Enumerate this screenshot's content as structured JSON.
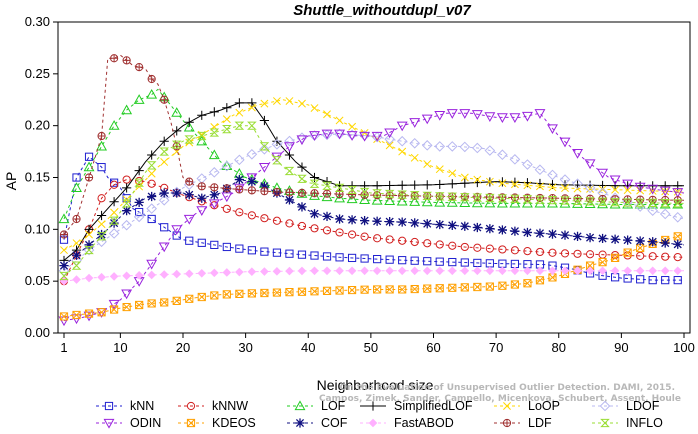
{
  "chart_data": {
    "type": "line",
    "title": "Shuttle_withoutdupl_v07",
    "xlabel": "Neighborhood size",
    "ylabel": "AP",
    "xlim": [
      1,
      100
    ],
    "ylim": [
      0.0,
      0.3
    ],
    "x_ticks": [
      1,
      10,
      20,
      30,
      40,
      50,
      60,
      70,
      80,
      90,
      100
    ],
    "y_ticks": [
      0.0,
      0.05,
      0.1,
      0.15,
      0.2,
      0.25,
      0.3
    ],
    "y_tick_labels": [
      "0.00",
      "0.05",
      "0.10",
      "0.15",
      "0.20",
      "0.25",
      "0.30"
    ],
    "grid": false,
    "legend_position": "bottom",
    "watermark_lines": [
      "Campos, Zimek, Sander, Campello, Micenkova, Schubert, Assent, Houle",
      "On the Evaluation of Unsupervised Outlier Detection. DAMI, 2015."
    ],
    "series": [
      {
        "name": "kNN",
        "color": "#1f1fd0",
        "marker": "square",
        "dash": "3,3",
        "points": [
          [
            1,
            0.09
          ],
          [
            3,
            0.15
          ],
          [
            5,
            0.17
          ],
          [
            7,
            0.16
          ],
          [
            8,
            0.15
          ],
          [
            10,
            0.14
          ],
          [
            12,
            0.12
          ],
          [
            15,
            0.11
          ],
          [
            18,
            0.098
          ],
          [
            20,
            0.09
          ],
          [
            23,
            0.087
          ],
          [
            27,
            0.083
          ],
          [
            32,
            0.079
          ],
          [
            38,
            0.076
          ],
          [
            45,
            0.073
          ],
          [
            52,
            0.071
          ],
          [
            60,
            0.069
          ],
          [
            70,
            0.067
          ],
          [
            78,
            0.066
          ],
          [
            82,
            0.062
          ],
          [
            86,
            0.056
          ],
          [
            90,
            0.053
          ],
          [
            95,
            0.051
          ],
          [
            100,
            0.051
          ]
        ]
      },
      {
        "name": "kNNW",
        "color": "#d22020",
        "marker": "circle",
        "dash": "3,3",
        "points": [
          [
            1,
            0.05
          ],
          [
            3,
            0.075
          ],
          [
            5,
            0.1
          ],
          [
            7,
            0.13
          ],
          [
            9,
            0.143
          ],
          [
            11,
            0.148
          ],
          [
            14,
            0.146
          ],
          [
            17,
            0.14
          ],
          [
            20,
            0.133
          ],
          [
            24,
            0.125
          ],
          [
            28,
            0.118
          ],
          [
            32,
            0.112
          ],
          [
            36,
            0.107
          ],
          [
            40,
            0.102
          ],
          [
            45,
            0.097
          ],
          [
            50,
            0.092
          ],
          [
            55,
            0.089
          ],
          [
            60,
            0.086
          ],
          [
            65,
            0.083
          ],
          [
            70,
            0.081
          ],
          [
            75,
            0.079
          ],
          [
            80,
            0.077
          ],
          [
            85,
            0.076
          ],
          [
            90,
            0.075
          ],
          [
            95,
            0.074
          ],
          [
            100,
            0.073
          ]
        ]
      },
      {
        "name": "LOF",
        "color": "#22cc22",
        "marker": "triangle",
        "dash": "3,3",
        "points": [
          [
            1,
            0.11
          ],
          [
            3,
            0.14
          ],
          [
            5,
            0.16
          ],
          [
            7,
            0.18
          ],
          [
            9,
            0.2
          ],
          [
            11,
            0.215
          ],
          [
            13,
            0.225
          ],
          [
            15,
            0.23
          ],
          [
            16,
            0.235
          ],
          [
            18,
            0.22
          ],
          [
            20,
            0.205
          ],
          [
            23,
            0.185
          ],
          [
            26,
            0.165
          ],
          [
            30,
            0.15
          ],
          [
            35,
            0.14
          ],
          [
            40,
            0.133
          ],
          [
            45,
            0.13
          ],
          [
            50,
            0.128
          ],
          [
            60,
            0.126
          ],
          [
            70,
            0.125
          ],
          [
            80,
            0.125
          ],
          [
            90,
            0.124
          ],
          [
            100,
            0.124
          ]
        ]
      },
      {
        "name": "SimplifiedLOF",
        "color": "#000000",
        "marker": "plus",
        "dash": "0",
        "points": [
          [
            1,
            0.07
          ],
          [
            3,
            0.08
          ],
          [
            5,
            0.1
          ],
          [
            8,
            0.12
          ],
          [
            11,
            0.14
          ],
          [
            14,
            0.165
          ],
          [
            17,
            0.185
          ],
          [
            20,
            0.2
          ],
          [
            23,
            0.21
          ],
          [
            26,
            0.215
          ],
          [
            29,
            0.222
          ],
          [
            31,
            0.222
          ],
          [
            33,
            0.205
          ],
          [
            35,
            0.185
          ],
          [
            38,
            0.165
          ],
          [
            41,
            0.15
          ],
          [
            45,
            0.142
          ],
          [
            50,
            0.142
          ],
          [
            60,
            0.143
          ],
          [
            70,
            0.146
          ],
          [
            75,
            0.145
          ],
          [
            80,
            0.143
          ],
          [
            90,
            0.142
          ],
          [
            100,
            0.142
          ]
        ]
      },
      {
        "name": "LoOP",
        "color": "#ffd700",
        "marker": "x",
        "dash": "3,3",
        "points": [
          [
            1,
            0.08
          ],
          [
            4,
            0.09
          ],
          [
            8,
            0.11
          ],
          [
            12,
            0.135
          ],
          [
            16,
            0.16
          ],
          [
            20,
            0.18
          ],
          [
            24,
            0.195
          ],
          [
            28,
            0.21
          ],
          [
            32,
            0.22
          ],
          [
            36,
            0.225
          ],
          [
            40,
            0.22
          ],
          [
            45,
            0.205
          ],
          [
            50,
            0.19
          ],
          [
            55,
            0.175
          ],
          [
            60,
            0.16
          ],
          [
            65,
            0.15
          ],
          [
            70,
            0.145
          ],
          [
            80,
            0.14
          ],
          [
            90,
            0.138
          ],
          [
            100,
            0.136
          ]
        ]
      },
      {
        "name": "LDOF",
        "color": "#b8b8f0",
        "marker": "diamond",
        "dash": "3,3",
        "points": [
          [
            1,
            0.06
          ],
          [
            5,
            0.08
          ],
          [
            10,
            0.1
          ],
          [
            15,
            0.12
          ],
          [
            20,
            0.14
          ],
          [
            25,
            0.155
          ],
          [
            30,
            0.17
          ],
          [
            35,
            0.182
          ],
          [
            40,
            0.19
          ],
          [
            45,
            0.192
          ],
          [
            50,
            0.19
          ],
          [
            55,
            0.185
          ],
          [
            60,
            0.18
          ],
          [
            64,
            0.18
          ],
          [
            68,
            0.178
          ],
          [
            72,
            0.17
          ],
          [
            76,
            0.16
          ],
          [
            80,
            0.15
          ],
          [
            85,
            0.14
          ],
          [
            90,
            0.128
          ],
          [
            95,
            0.118
          ],
          [
            100,
            0.11
          ]
        ]
      },
      {
        "name": "ODIN",
        "color": "#9922dd",
        "marker": "triangle-down",
        "dash": "3,3",
        "points": [
          [
            1,
            0.012
          ],
          [
            4,
            0.015
          ],
          [
            7,
            0.02
          ],
          [
            10,
            0.032
          ],
          [
            13,
            0.05
          ],
          [
            16,
            0.075
          ],
          [
            19,
            0.1
          ],
          [
            22,
            0.115
          ],
          [
            25,
            0.125
          ],
          [
            28,
            0.135
          ],
          [
            31,
            0.15
          ],
          [
            34,
            0.165
          ],
          [
            37,
            0.18
          ],
          [
            40,
            0.19
          ],
          [
            44,
            0.193
          ],
          [
            48,
            0.19
          ],
          [
            52,
            0.19
          ],
          [
            55,
            0.2
          ],
          [
            58,
            0.205
          ],
          [
            62,
            0.212
          ],
          [
            66,
            0.212
          ],
          [
            70,
            0.208
          ],
          [
            74,
            0.208
          ],
          [
            77,
            0.212
          ],
          [
            80,
            0.19
          ],
          [
            84,
            0.168
          ],
          [
            88,
            0.15
          ],
          [
            92,
            0.142
          ],
          [
            96,
            0.138
          ],
          [
            100,
            0.135
          ]
        ]
      },
      {
        "name": "KDEOS",
        "color": "#ffa000",
        "marker": "square-x",
        "dash": "3,3",
        "points": [
          [
            1,
            0.016
          ],
          [
            4,
            0.018
          ],
          [
            7,
            0.02
          ],
          [
            10,
            0.024
          ],
          [
            14,
            0.028
          ],
          [
            18,
            0.03
          ],
          [
            22,
            0.034
          ],
          [
            26,
            0.037
          ],
          [
            30,
            0.038
          ],
          [
            35,
            0.039
          ],
          [
            40,
            0.04
          ],
          [
            45,
            0.041
          ],
          [
            50,
            0.042
          ],
          [
            55,
            0.042
          ],
          [
            60,
            0.043
          ],
          [
            65,
            0.044
          ],
          [
            70,
            0.045
          ],
          [
            75,
            0.048
          ],
          [
            80,
            0.055
          ],
          [
            85,
            0.065
          ],
          [
            88,
            0.07
          ],
          [
            92,
            0.08
          ],
          [
            96,
            0.088
          ],
          [
            100,
            0.095
          ]
        ]
      },
      {
        "name": "COF",
        "color": "#101080",
        "marker": "star",
        "dash": "3,3",
        "points": [
          [
            1,
            0.065
          ],
          [
            3,
            0.075
          ],
          [
            5,
            0.085
          ],
          [
            8,
            0.1
          ],
          [
            11,
            0.118
          ],
          [
            14,
            0.13
          ],
          [
            17,
            0.135
          ],
          [
            20,
            0.135
          ],
          [
            23,
            0.13
          ],
          [
            26,
            0.135
          ],
          [
            29,
            0.148
          ],
          [
            32,
            0.145
          ],
          [
            35,
            0.135
          ],
          [
            38,
            0.125
          ],
          [
            41,
            0.115
          ],
          [
            45,
            0.11
          ],
          [
            50,
            0.108
          ],
          [
            55,
            0.107
          ],
          [
            60,
            0.105
          ],
          [
            65,
            0.103
          ],
          [
            70,
            0.1
          ],
          [
            75,
            0.097
          ],
          [
            80,
            0.095
          ],
          [
            85,
            0.092
          ],
          [
            90,
            0.09
          ],
          [
            95,
            0.088
          ],
          [
            100,
            0.085
          ]
        ]
      },
      {
        "name": "FastABOD",
        "color": "#ffb0ff",
        "marker": "diamond-solid",
        "dash": "3,3",
        "points": [
          [
            1,
            0.05
          ],
          [
            5,
            0.053
          ],
          [
            10,
            0.055
          ],
          [
            20,
            0.057
          ],
          [
            30,
            0.059
          ],
          [
            40,
            0.06
          ],
          [
            50,
            0.06
          ],
          [
            60,
            0.06
          ],
          [
            70,
            0.06
          ],
          [
            80,
            0.06
          ],
          [
            90,
            0.06
          ],
          [
            100,
            0.06
          ]
        ]
      },
      {
        "name": "LDF",
        "color": "#a03030",
        "marker": "circle-plus",
        "dash": "3,3",
        "points": [
          [
            1,
            0.095
          ],
          [
            3,
            0.11
          ],
          [
            5,
            0.15
          ],
          [
            7,
            0.19
          ],
          [
            8,
            0.265
          ],
          [
            9,
            0.265
          ],
          [
            10,
            0.268
          ],
          [
            12,
            0.258
          ],
          [
            14,
            0.255
          ],
          [
            15,
            0.245
          ],
          [
            16,
            0.24
          ],
          [
            17,
            0.225
          ],
          [
            18,
            0.205
          ],
          [
            19,
            0.18
          ],
          [
            20,
            0.15
          ],
          [
            22,
            0.142
          ],
          [
            26,
            0.14
          ],
          [
            30,
            0.138
          ],
          [
            35,
            0.136
          ],
          [
            40,
            0.135
          ],
          [
            50,
            0.133
          ],
          [
            60,
            0.132
          ],
          [
            70,
            0.131
          ],
          [
            80,
            0.13
          ],
          [
            90,
            0.129
          ],
          [
            100,
            0.128
          ]
        ]
      },
      {
        "name": "INFLO",
        "color": "#99dd33",
        "marker": "hourglass",
        "dash": "3,3",
        "points": [
          [
            1,
            0.055
          ],
          [
            3,
            0.065
          ],
          [
            5,
            0.08
          ],
          [
            8,
            0.1
          ],
          [
            11,
            0.125
          ],
          [
            14,
            0.155
          ],
          [
            17,
            0.175
          ],
          [
            20,
            0.185
          ],
          [
            23,
            0.19
          ],
          [
            26,
            0.195
          ],
          [
            29,
            0.2
          ],
          [
            31,
            0.2
          ],
          [
            33,
            0.18
          ],
          [
            36,
            0.16
          ],
          [
            40,
            0.145
          ],
          [
            45,
            0.14
          ],
          [
            50,
            0.135
          ],
          [
            60,
            0.132
          ],
          [
            70,
            0.13
          ],
          [
            80,
            0.128
          ],
          [
            90,
            0.126
          ],
          [
            100,
            0.125
          ]
        ]
      }
    ]
  }
}
